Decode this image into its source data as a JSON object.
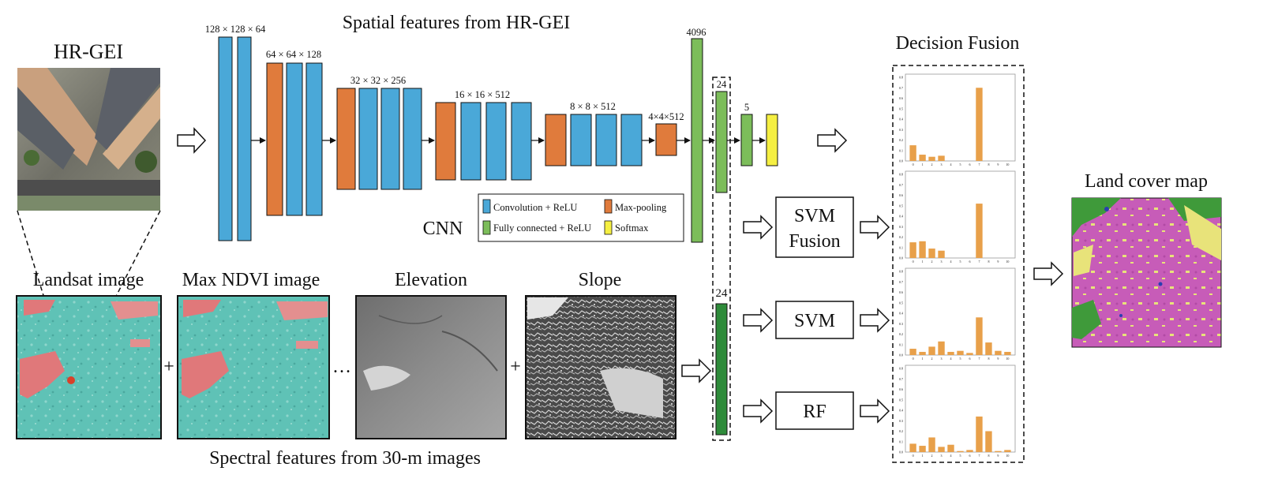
{
  "titles": {
    "hr_gei": "HR-GEI",
    "spatial": "Spatial features from HR-GEI",
    "decision_fusion": "Decision Fusion",
    "land_cover": "Land cover map",
    "landsat": "Landsat image",
    "max_ndvi": "Max NDVI image",
    "elevation": "Elevation",
    "slope": "Slope",
    "spectral": "Spectral features from 30-m images",
    "cnn": "CNN"
  },
  "layer_sizes": [
    "128 × 128 × 64",
    "64 × 64 × 128",
    "32 × 32 × 256",
    "16 × 16 × 512",
    "8 × 8 × 512",
    "4×4×512",
    "4096",
    "24",
    "5",
    "24"
  ],
  "legend": {
    "conv": "Convolution + ReLU",
    "maxpool": "Max-pooling",
    "fc": "Fully connected + ReLU",
    "softmax": "Softmax"
  },
  "classifiers": {
    "svm_fusion": [
      "SVM",
      "Fusion"
    ],
    "svm": "SVM",
    "rf": "RF"
  },
  "symbols": {
    "plus": "+",
    "ellipsis": "…"
  },
  "colors": {
    "conv": "#4aa8d8",
    "maxpool": "#e07b3c",
    "fc": "#7cbd5a",
    "fc_dark": "#2e8b3a",
    "softmax": "#f5ef42",
    "bar": "#e8a04a"
  },
  "chart_data": [
    {
      "type": "bar",
      "categories": [
        "0",
        "1",
        "2",
        "3",
        "4",
        "5",
        "6",
        "7",
        "8",
        "9",
        "10"
      ],
      "values": [
        0.15,
        0.06,
        0.04,
        0.05,
        0,
        0,
        0,
        0.7,
        0,
        0,
        0
      ],
      "yticks": [
        "0.8",
        "0.7",
        "0.6",
        "0.5",
        "0.4",
        "0.3",
        "0.2",
        "0.1",
        "0.0"
      ],
      "ylim": [
        0,
        0.8
      ]
    },
    {
      "type": "bar",
      "categories": [
        "0",
        "1",
        "2",
        "3",
        "4",
        "5",
        "6",
        "7",
        "8",
        "9",
        "10"
      ],
      "values": [
        0.15,
        0.16,
        0.09,
        0.07,
        0,
        0,
        0,
        0.52,
        0,
        0,
        0
      ],
      "yticks": [
        "0.8",
        "0.7",
        "0.6",
        "0.5",
        "0.4",
        "0.3",
        "0.2",
        "0.1",
        "0.0"
      ],
      "ylim": [
        0,
        0.8
      ]
    },
    {
      "type": "bar",
      "categories": [
        "0",
        "1",
        "2",
        "3",
        "4",
        "5",
        "6",
        "7",
        "8",
        "9",
        "10"
      ],
      "values": [
        0.06,
        0.03,
        0.08,
        0.13,
        0.03,
        0.04,
        0.02,
        0.36,
        0.12,
        0.04,
        0.03
      ],
      "yticks": [
        "0.8",
        "0.7",
        "0.6",
        "0.5",
        "0.4",
        "0.3",
        "0.2",
        "0.1",
        "0.0"
      ],
      "ylim": [
        0,
        0.8
      ]
    },
    {
      "type": "bar",
      "categories": [
        "0",
        "1",
        "2",
        "3",
        "4",
        "5",
        "6",
        "7",
        "8",
        "9",
        "10"
      ],
      "values": [
        0.08,
        0.06,
        0.14,
        0.05,
        0.07,
        0.01,
        0.02,
        0.34,
        0.2,
        0.01,
        0.02
      ],
      "yticks": [
        "0.8",
        "0.7",
        "0.6",
        "0.5",
        "0.4",
        "0.3",
        "0.2",
        "0.1",
        "0.0"
      ],
      "ylim": [
        0,
        0.8
      ]
    }
  ]
}
